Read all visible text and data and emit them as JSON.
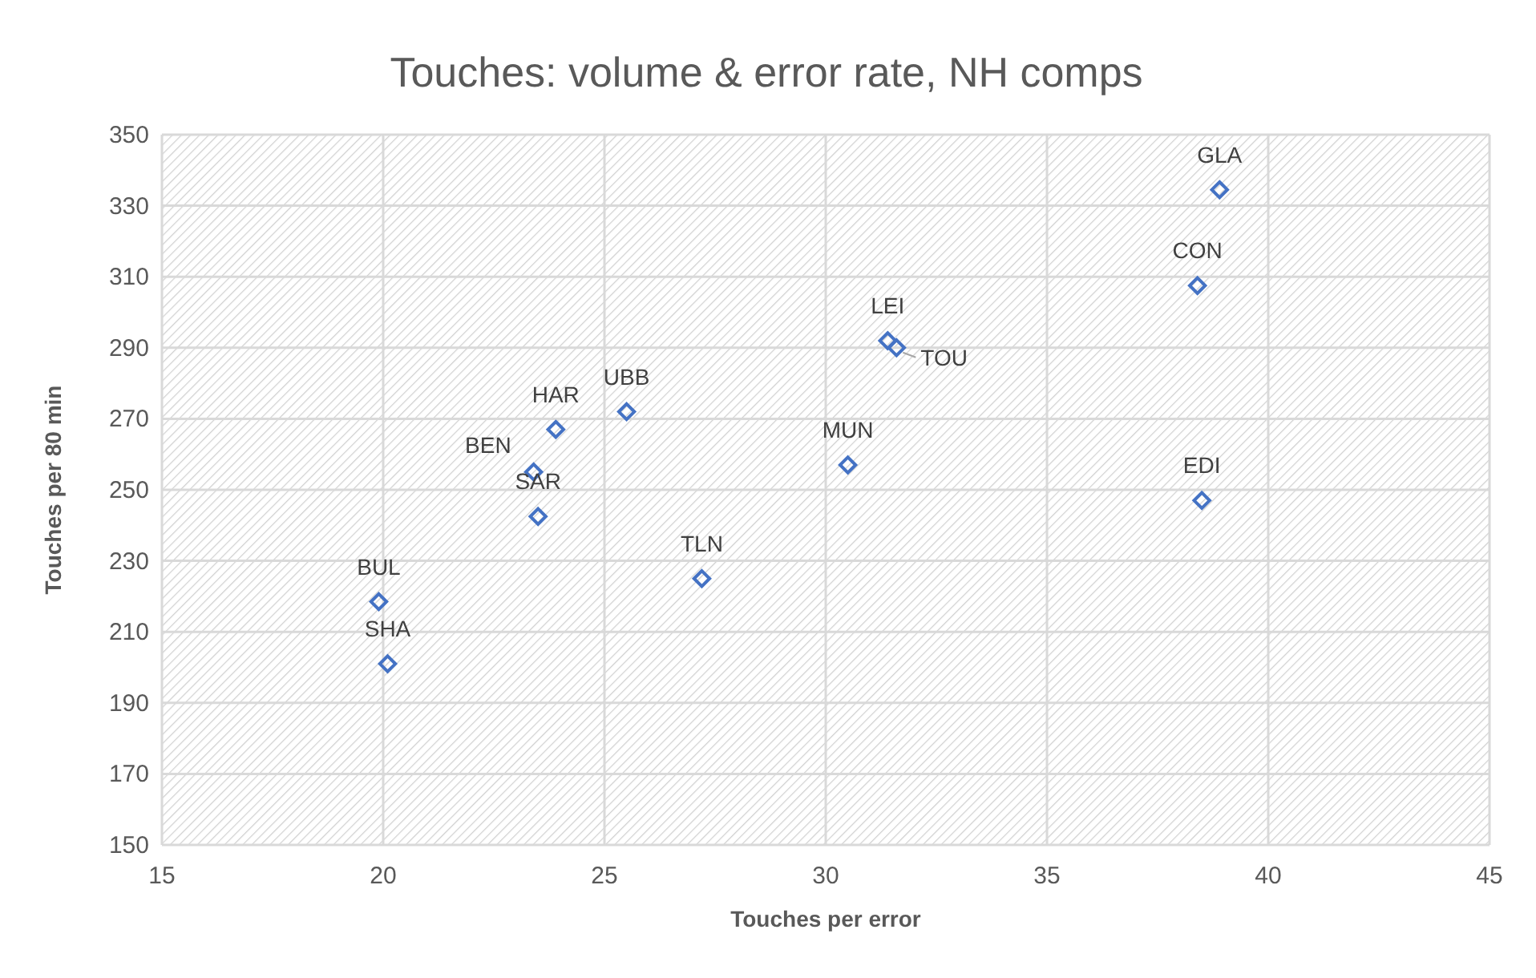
{
  "chart_data": {
    "type": "scatter",
    "title": "Touches: volume & error rate, NH comps",
    "xlabel": "Touches per error",
    "ylabel": "Touches per 80 min",
    "x": [
      38.9,
      38.4,
      31.4,
      31.6,
      38.5,
      30.5,
      25.5,
      23.9,
      23.4,
      23.5,
      27.2,
      19.9,
      20.1
    ],
    "series": [
      {
        "color": "#4472c4",
        "values": [
          334.5,
          307.5,
          292,
          290,
          247,
          257,
          272,
          267,
          255,
          242.5,
          225,
          218.5,
          201
        ]
      }
    ],
    "annotations": [
      {
        "text": "GLA",
        "x": 38.9,
        "y": 334.5
      },
      {
        "text": "CON",
        "x": 38.4,
        "y": 307.5
      },
      {
        "text": "LEI",
        "x": 31.4,
        "y": 292
      },
      {
        "text": "TOU",
        "x": 31.6,
        "y": 290
      },
      {
        "text": "EDI",
        "x": 38.5,
        "y": 247
      },
      {
        "text": "MUN",
        "x": 30.5,
        "y": 257
      },
      {
        "text": "UBB",
        "x": 25.5,
        "y": 272
      },
      {
        "text": "HAR",
        "x": 23.9,
        "y": 267
      },
      {
        "text": "BEN",
        "x": 23.4,
        "y": 255
      },
      {
        "text": "SAR",
        "x": 23.5,
        "y": 242.5
      },
      {
        "text": "TLN",
        "x": 27.2,
        "y": 225
      },
      {
        "text": "BUL",
        "x": 19.9,
        "y": 218.5
      },
      {
        "text": "SHA",
        "x": 20.1,
        "y": 201
      }
    ],
    "xlim": [
      15,
      45
    ],
    "xticks": [
      15,
      20,
      25,
      30,
      35,
      40,
      45
    ],
    "ylim": [
      150,
      350
    ],
    "yticks": [
      150,
      170,
      190,
      210,
      230,
      250,
      270,
      290,
      310,
      330,
      350
    ],
    "grid": true,
    "marker": "diamond"
  }
}
